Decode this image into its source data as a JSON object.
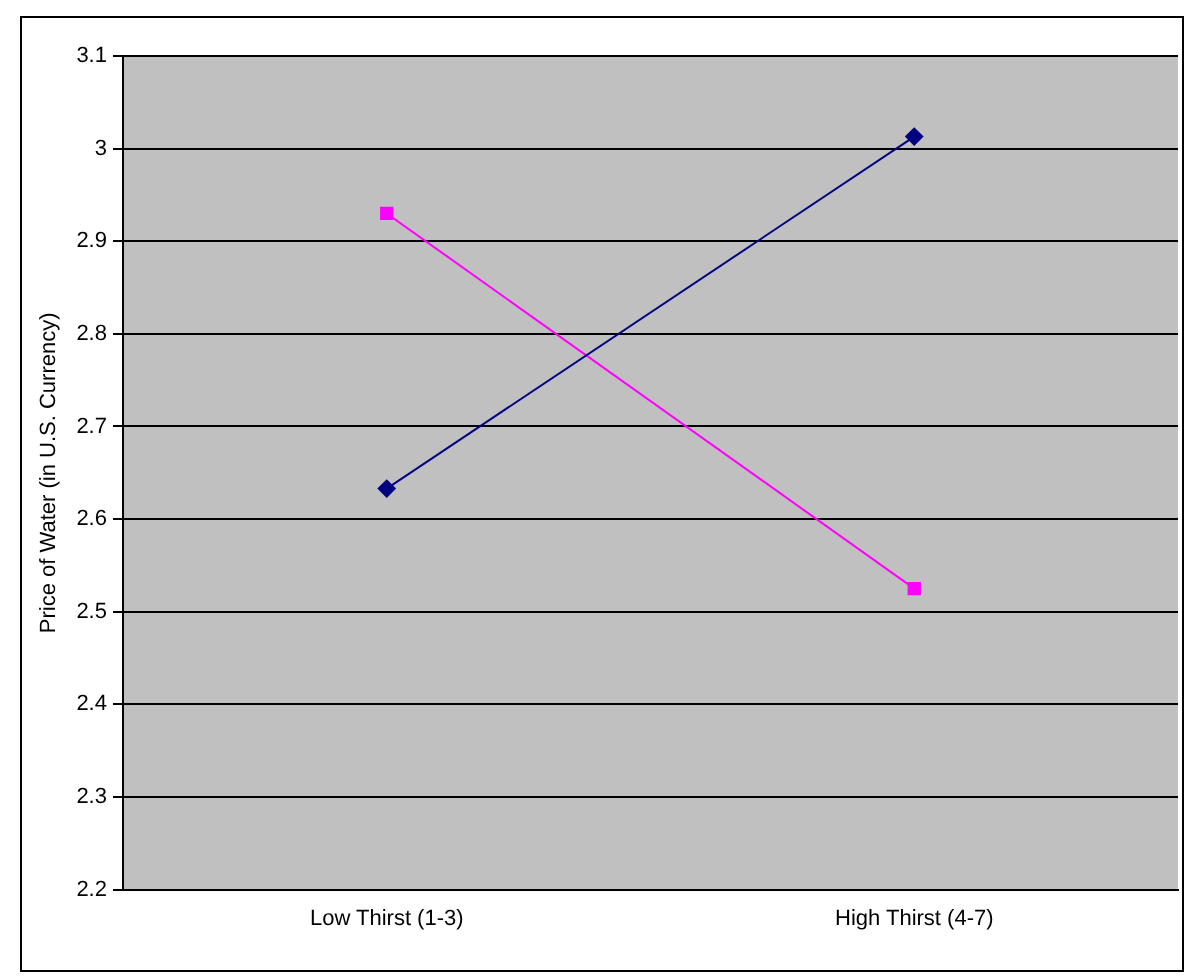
{
  "chart_data": {
    "type": "line",
    "ylabel": "Price of Water (in U.S. Currency)",
    "categories": [
      "Low Thirst (1-3)",
      "High Thirst (4-7)"
    ],
    "series": [
      {
        "color": "#000080",
        "values": [
          2.633,
          3.013
        ],
        "marker": "diamond"
      },
      {
        "color": "#ff00ff",
        "values": [
          2.93,
          2.525
        ],
        "marker": "square"
      }
    ],
    "ylim": [
      2.2,
      3.1
    ],
    "yticks": [
      2.2,
      2.3,
      2.4,
      2.5,
      2.6,
      2.7,
      2.8,
      2.9,
      3,
      3.1
    ],
    "grid": "y",
    "legend": false,
    "line_style": "solid"
  }
}
